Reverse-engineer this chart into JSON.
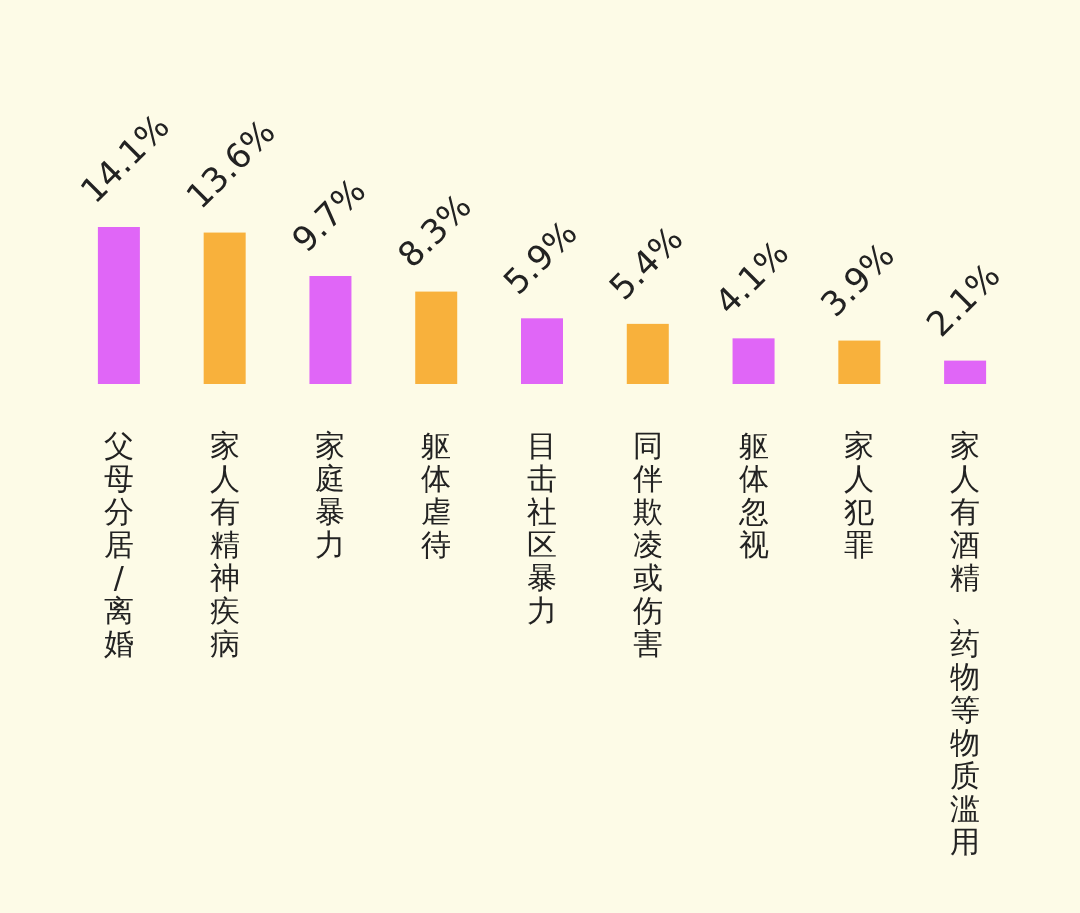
{
  "chart_data": {
    "type": "bar",
    "categories": [
      "父母分居/离婚",
      "家人有精神疾病",
      "家庭暴力",
      "躯体虐待",
      "目击社区暴力",
      "同伴欺凌或伤害",
      "躯体忽视",
      "家人犯罪",
      "家人有酒精、药物等物质滥用"
    ],
    "values": [
      14.1,
      13.6,
      9.7,
      8.3,
      5.9,
      5.4,
      4.1,
      3.9,
      2.1
    ],
    "value_labels": [
      "14.1%",
      "13.6%",
      "9.7%",
      "8.3%",
      "5.9%",
      "5.4%",
      "4.1%",
      "3.9%",
      "2.1%"
    ],
    "colors": [
      "#e066f7",
      "#f8b13c",
      "#e066f7",
      "#f8b13c",
      "#e066f7",
      "#f8b13c",
      "#e066f7",
      "#f8b13c",
      "#e066f7"
    ]
  }
}
